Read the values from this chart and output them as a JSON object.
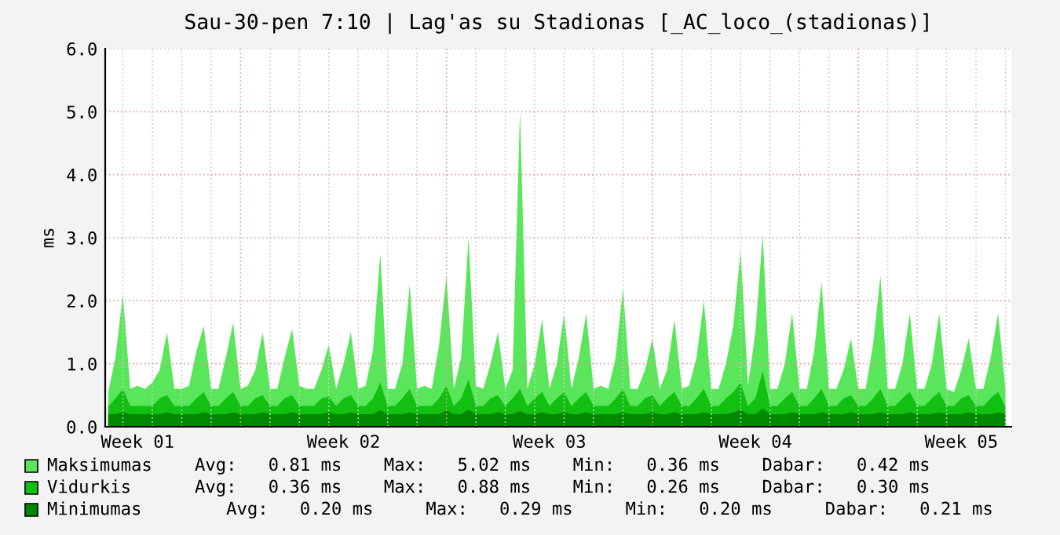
{
  "chart_data": {
    "type": "area",
    "title": "Sau-30-pen 7:10 | Lag'as su Stadionas [_AC_loco_(stadionas)]",
    "ylabel": "ms",
    "categories": [
      null,
      null,
      null,
      null,
      "Week 01",
      null,
      null,
      null,
      null,
      null,
      null,
      null,
      null,
      null,
      null,
      null,
      null,
      null,
      null,
      null,
      null,
      null,
      null,
      null,
      null,
      null,
      null,
      null,
      null,
      null,
      null,
      null,
      "Week 02",
      null,
      null,
      null,
      null,
      null,
      null,
      null,
      null,
      null,
      null,
      null,
      null,
      null,
      null,
      null,
      null,
      null,
      null,
      null,
      null,
      null,
      null,
      null,
      null,
      null,
      null,
      null,
      "Week 03",
      null,
      null,
      null,
      null,
      null,
      null,
      null,
      null,
      null,
      null,
      null,
      null,
      null,
      null,
      null,
      null,
      null,
      null,
      null,
      null,
      null,
      null,
      null,
      null,
      null,
      null,
      null,
      "Week 04",
      null,
      null,
      null,
      null,
      null,
      null,
      null,
      null,
      null,
      null,
      null,
      null,
      null,
      null,
      null,
      null,
      null,
      null,
      null,
      null,
      null,
      null,
      null,
      null,
      null,
      null,
      null,
      "Week 05",
      null,
      null,
      null,
      null,
      null,
      null
    ],
    "series": [
      {
        "name": "Maksimumas",
        "color": "#5ae65a",
        "values": [
          0.55,
          1.1,
          2.1,
          0.6,
          0.65,
          0.6,
          0.7,
          0.9,
          1.5,
          0.6,
          0.6,
          0.65,
          1.2,
          1.6,
          0.6,
          0.6,
          1.1,
          1.65,
          0.6,
          0.65,
          0.9,
          1.5,
          0.6,
          0.6,
          1.1,
          1.55,
          0.65,
          0.6,
          0.6,
          0.9,
          1.3,
          0.6,
          1.0,
          1.5,
          0.6,
          0.65,
          1.2,
          2.75,
          0.6,
          0.6,
          1.0,
          2.25,
          0.6,
          0.65,
          0.6,
          1.3,
          2.4,
          0.6,
          1.1,
          3.0,
          0.65,
          0.6,
          1.0,
          1.5,
          0.6,
          0.9,
          5.02,
          0.6,
          1.0,
          1.7,
          0.6,
          1.0,
          1.8,
          0.6,
          1.1,
          1.8,
          0.6,
          0.65,
          0.6,
          1.1,
          2.2,
          0.6,
          0.6,
          0.9,
          1.4,
          0.6,
          0.9,
          1.7,
          0.6,
          0.65,
          1.1,
          2.0,
          0.6,
          0.6,
          1.0,
          1.6,
          2.8,
          0.65,
          1.5,
          3.05,
          0.6,
          0.6,
          1.0,
          1.8,
          0.6,
          0.6,
          1.2,
          2.3,
          0.6,
          0.6,
          0.9,
          1.4,
          0.6,
          0.6,
          1.3,
          2.4,
          0.6,
          0.6,
          1.0,
          1.8,
          0.6,
          0.6,
          1.0,
          1.8,
          0.6,
          0.55,
          0.9,
          1.4,
          0.6,
          0.6,
          1.1,
          1.8,
          0.6
        ]
      },
      {
        "name": "Vidurkis",
        "color": "#12c012",
        "values": [
          0.32,
          0.45,
          0.6,
          0.33,
          0.33,
          0.33,
          0.33,
          0.45,
          0.5,
          0.33,
          0.33,
          0.33,
          0.45,
          0.55,
          0.33,
          0.33,
          0.45,
          0.55,
          0.33,
          0.33,
          0.45,
          0.5,
          0.33,
          0.33,
          0.45,
          0.5,
          0.33,
          0.33,
          0.33,
          0.45,
          0.48,
          0.33,
          0.45,
          0.5,
          0.33,
          0.33,
          0.45,
          0.7,
          0.33,
          0.33,
          0.45,
          0.6,
          0.33,
          0.33,
          0.33,
          0.45,
          0.65,
          0.33,
          0.45,
          0.75,
          0.33,
          0.33,
          0.45,
          0.5,
          0.33,
          0.45,
          0.6,
          0.33,
          0.45,
          0.55,
          0.33,
          0.45,
          0.55,
          0.33,
          0.45,
          0.55,
          0.33,
          0.33,
          0.33,
          0.45,
          0.6,
          0.33,
          0.33,
          0.45,
          0.5,
          0.33,
          0.45,
          0.55,
          0.33,
          0.33,
          0.45,
          0.6,
          0.33,
          0.33,
          0.45,
          0.55,
          0.7,
          0.33,
          0.45,
          0.88,
          0.33,
          0.33,
          0.45,
          0.55,
          0.33,
          0.33,
          0.45,
          0.6,
          0.33,
          0.33,
          0.45,
          0.5,
          0.33,
          0.33,
          0.45,
          0.6,
          0.33,
          0.33,
          0.45,
          0.55,
          0.33,
          0.33,
          0.45,
          0.55,
          0.33,
          0.33,
          0.45,
          0.5,
          0.33,
          0.33,
          0.45,
          0.55,
          0.32
        ]
      },
      {
        "name": "Minimumas",
        "color": "#008800",
        "values": [
          0.2,
          0.2,
          0.23,
          0.2,
          0.2,
          0.2,
          0.2,
          0.2,
          0.23,
          0.2,
          0.2,
          0.2,
          0.2,
          0.23,
          0.2,
          0.2,
          0.2,
          0.23,
          0.2,
          0.2,
          0.2,
          0.23,
          0.2,
          0.2,
          0.2,
          0.23,
          0.2,
          0.2,
          0.2,
          0.2,
          0.23,
          0.2,
          0.2,
          0.23,
          0.2,
          0.2,
          0.2,
          0.26,
          0.2,
          0.2,
          0.2,
          0.23,
          0.2,
          0.2,
          0.2,
          0.2,
          0.26,
          0.2,
          0.2,
          0.27,
          0.2,
          0.2,
          0.2,
          0.23,
          0.2,
          0.2,
          0.25,
          0.2,
          0.2,
          0.23,
          0.2,
          0.2,
          0.23,
          0.2,
          0.2,
          0.23,
          0.2,
          0.2,
          0.2,
          0.2,
          0.23,
          0.2,
          0.2,
          0.2,
          0.23,
          0.2,
          0.2,
          0.23,
          0.2,
          0.2,
          0.2,
          0.23,
          0.2,
          0.2,
          0.2,
          0.23,
          0.27,
          0.2,
          0.2,
          0.29,
          0.2,
          0.2,
          0.2,
          0.23,
          0.2,
          0.2,
          0.2,
          0.23,
          0.2,
          0.2,
          0.2,
          0.23,
          0.2,
          0.2,
          0.2,
          0.23,
          0.2,
          0.2,
          0.2,
          0.23,
          0.2,
          0.2,
          0.2,
          0.23,
          0.2,
          0.2,
          0.2,
          0.23,
          0.2,
          0.2,
          0.2,
          0.23,
          0.21
        ]
      }
    ],
    "ylim": [
      0,
      6.0
    ],
    "yticks": [
      {
        "value": 0,
        "label": "0.0"
      },
      {
        "value": 1,
        "label": "1.0"
      },
      {
        "value": 2,
        "label": "2.0"
      },
      {
        "value": 3,
        "label": "3.0"
      },
      {
        "value": 4,
        "label": "4.0"
      },
      {
        "value": 5,
        "label": "5.0"
      },
      {
        "value": 6,
        "label": "6.0"
      }
    ],
    "grid": true,
    "legend": "bottom",
    "annotations": [
      "Avg:   0.81 ms    Max:   5.02 ms    Min:   0.36 ms    Dabar:   0.42 ms",
      "Avg:   0.36 ms    Max:   0.88 ms    Min:   0.26 ms    Dabar:   0.30 ms",
      "   Avg:   0.20 ms     Max:   0.29 ms     Min:   0.20 ms     Dabar:   0.21 ms"
    ]
  }
}
